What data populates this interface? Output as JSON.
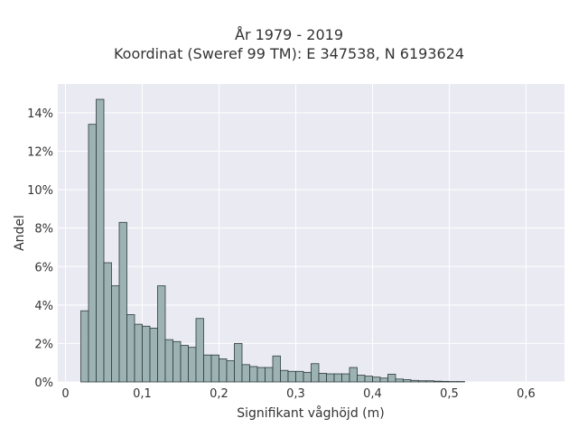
{
  "chart_data": {
    "type": "bar",
    "title": [
      "År 1979 - 2019",
      "Koordinat (Sweref 99 TM): E 347538, N 6193624"
    ],
    "xlabel": "Signifikant våghöjd (m)",
    "ylabel": "Andel",
    "xlim": [
      -0.01,
      0.65
    ],
    "ylim": [
      0,
      15.5
    ],
    "x_ticks": [
      "0",
      "0,1",
      "0,2",
      "0,3",
      "0,4",
      "0,5",
      "0,6"
    ],
    "x_tick_values": [
      0,
      0.1,
      0.2,
      0.3,
      0.4,
      0.5,
      0.6
    ],
    "y_ticks": [
      "0%",
      "2%",
      "4%",
      "6%",
      "8%",
      "10%",
      "12%",
      "14%"
    ],
    "y_tick_values": [
      0,
      2,
      4,
      6,
      8,
      10,
      12,
      14
    ],
    "grid": true,
    "background": "#eaeaf2",
    "bar_color": "#9db3b3",
    "bar_edge": "#2e3a3a",
    "bin_start": 0.02,
    "bin_width": 0.01,
    "values": [
      3.7,
      13.4,
      14.7,
      6.2,
      5.0,
      8.3,
      3.5,
      3.0,
      2.9,
      2.8,
      5.0,
      2.2,
      2.1,
      1.9,
      1.8,
      3.3,
      1.4,
      1.4,
      1.2,
      1.1,
      2.0,
      0.9,
      0.8,
      0.75,
      0.75,
      1.35,
      0.6,
      0.55,
      0.55,
      0.5,
      0.95,
      0.45,
      0.42,
      0.42,
      0.42,
      0.75,
      0.35,
      0.3,
      0.25,
      0.2,
      0.4,
      0.15,
      0.12,
      0.08,
      0.06,
      0.06,
      0.04,
      0.03,
      0.02,
      0.02
    ]
  }
}
